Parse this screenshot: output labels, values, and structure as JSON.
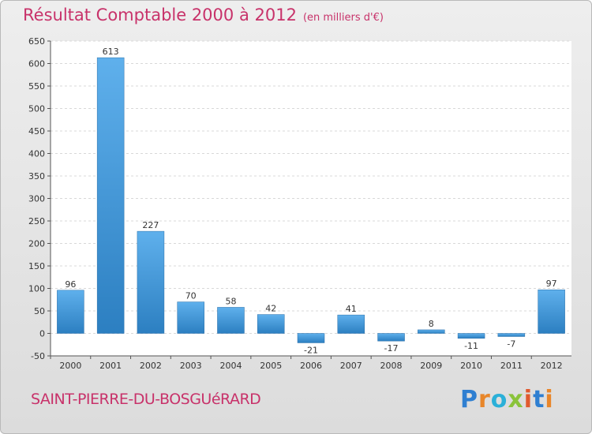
{
  "header": {
    "title": "Résultat Comptable 2000 à 2012",
    "subtitle": "(en milliers d'€)"
  },
  "footer": {
    "commune": "SAINT-PIERRE-DU-BOSGUéRARD"
  },
  "logo": {
    "letters": [
      "P",
      "r",
      "o",
      "x",
      "i",
      "t",
      "i"
    ],
    "colors": [
      "#2f7fd1",
      "#e8862a",
      "#2bb0d8",
      "#8ac33a",
      "#e05a2f",
      "#2f7fd1",
      "#e8862a"
    ]
  },
  "colors": {
    "bar_top": "#5fb0ec",
    "bar_bottom": "#2c7fc1",
    "title": "#c8326a"
  },
  "chart_data": {
    "type": "bar",
    "categories": [
      "2000",
      "2001",
      "2002",
      "2003",
      "2004",
      "2005",
      "2006",
      "2007",
      "2008",
      "2009",
      "2010",
      "2011",
      "2012"
    ],
    "values": [
      96,
      613,
      227,
      70,
      58,
      42,
      -21,
      41,
      -17,
      8,
      -11,
      -7,
      97
    ],
    "title": "Résultat Comptable 2000 à 2012",
    "subtitle": "(en milliers d'€)",
    "ylim": [
      -50,
      650
    ],
    "yticks": [
      -50,
      0,
      50,
      100,
      150,
      200,
      250,
      300,
      350,
      400,
      450,
      500,
      550,
      600,
      650
    ],
    "grid": true
  }
}
